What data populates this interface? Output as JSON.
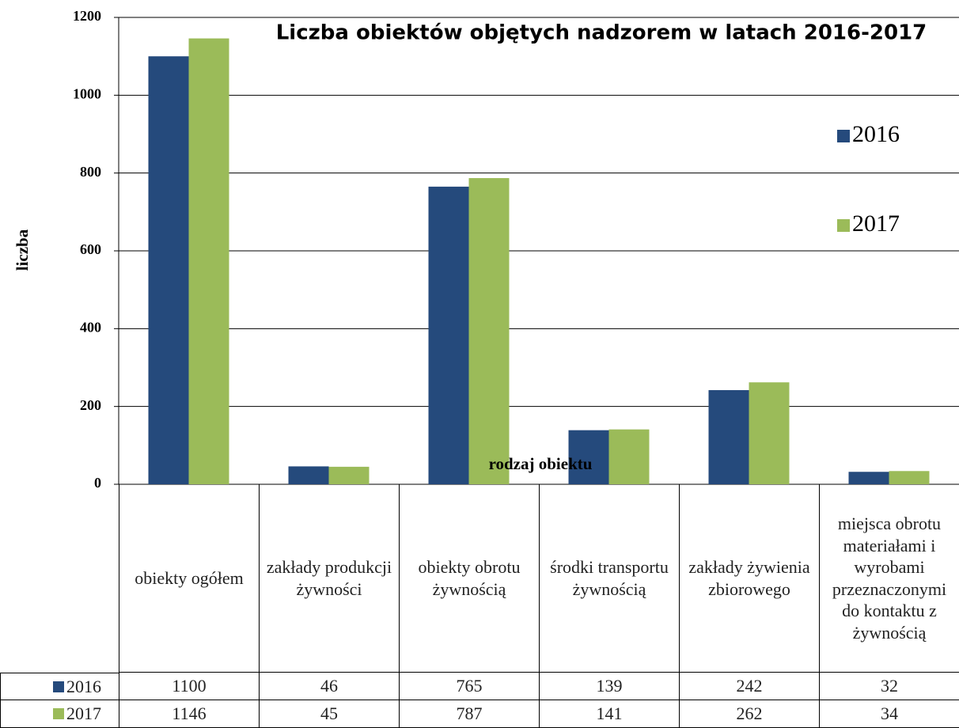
{
  "chart_data": {
    "type": "bar",
    "title": "Liczba obiektów objętych nadzorem w latach 2016-2017",
    "x_label": "rodzaj  obiektu",
    "y_label": "liczba",
    "categories": [
      "obiekty ogółem",
      "zakłady produkcji żywności",
      "obiekty obrotu żywnością",
      "środki transportu żywnością",
      "zakłady żywienia zbiorowego",
      "miejsca obrotu materiałami i wyrobami przeznaczonymi do kontaktu z żywnością"
    ],
    "series": [
      {
        "name": "2016",
        "color": "#254a7c",
        "values": [
          1100,
          46,
          765,
          139,
          242,
          32
        ]
      },
      {
        "name": "2017",
        "color": "#9bbb59",
        "values": [
          1146,
          45,
          787,
          141,
          262,
          34
        ]
      }
    ],
    "ylim": [
      0,
      1200
    ],
    "yticks": [
      0,
      200,
      400,
      600,
      800,
      1000,
      1200
    ],
    "grid": true,
    "legend": "right"
  }
}
